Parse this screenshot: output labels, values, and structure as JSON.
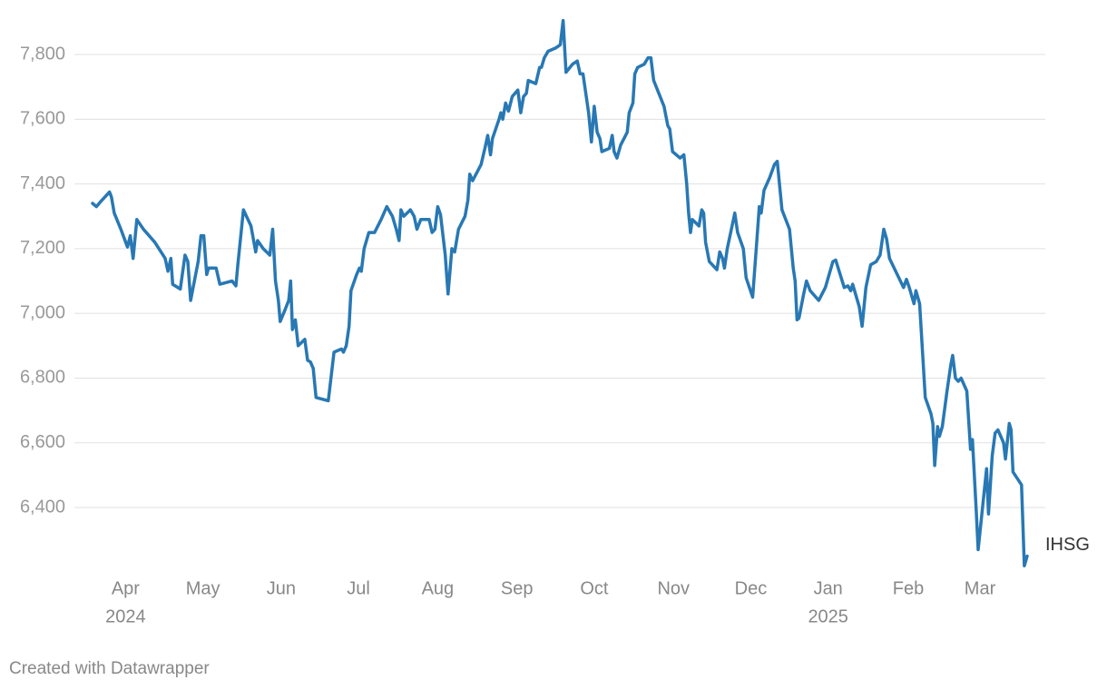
{
  "chart_data": {
    "type": "line",
    "series_label_position": "end",
    "footer": "Created with Datawrapper",
    "grid": true,
    "xlim": [
      2024.215,
      2025.206
    ],
    "ylim": [
      6200,
      7900
    ],
    "yticks": [
      {
        "value": 6400,
        "label": "6,400"
      },
      {
        "value": 6600,
        "label": "6,600"
      },
      {
        "value": 6800,
        "label": "6,800"
      },
      {
        "value": 7000,
        "label": "7,000"
      },
      {
        "value": 7200,
        "label": "7,200"
      },
      {
        "value": 7400,
        "label": "7,400"
      },
      {
        "value": 7600,
        "label": "7,600"
      },
      {
        "value": 7800,
        "label": "7,800"
      }
    ],
    "xticks": [
      {
        "value": 2024.25,
        "label": "Apr"
      },
      {
        "value": 2024.332,
        "label": "May"
      },
      {
        "value": 2024.415,
        "label": "Jun"
      },
      {
        "value": 2024.497,
        "label": "Jul"
      },
      {
        "value": 2024.581,
        "label": "Aug"
      },
      {
        "value": 2024.665,
        "label": "Sep"
      },
      {
        "value": 2024.747,
        "label": "Oct"
      },
      {
        "value": 2024.831,
        "label": "Nov"
      },
      {
        "value": 2024.913,
        "label": "Dec"
      },
      {
        "value": 2024.995,
        "label": "Jan"
      },
      {
        "value": 2025.08,
        "label": "Feb"
      },
      {
        "value": 2025.156,
        "label": "Mar"
      }
    ],
    "year_labels": [
      {
        "value": 2024.25,
        "label": "2024"
      },
      {
        "value": 2024.995,
        "label": "2025"
      }
    ],
    "x": [
      2024.215,
      2024.219,
      2024.225,
      2024.233,
      2024.235,
      2024.238,
      2024.245,
      2024.252,
      2024.255,
      2024.258,
      2024.262,
      2024.269,
      2024.281,
      2024.292,
      2024.295,
      2024.298,
      2024.3,
      2024.308,
      2024.313,
      2024.316,
      2024.319,
      2024.327,
      2024.33,
      2024.333,
      2024.336,
      2024.338,
      2024.346,
      2024.35,
      2024.363,
      2024.367,
      2024.369,
      2024.375,
      2024.383,
      2024.388,
      2024.39,
      2024.396,
      2024.403,
      2024.406,
      2024.409,
      2024.412,
      2024.414,
      2024.419,
      2024.423,
      2024.425,
      2024.427,
      2024.43,
      2024.433,
      2024.44,
      2024.443,
      2024.446,
      2024.449,
      2024.452,
      2024.465,
      2024.469,
      2024.471,
      2024.479,
      2024.481,
      2024.484,
      2024.487,
      2024.489,
      2024.495,
      2024.498,
      2024.5,
      2024.503,
      2024.508,
      2024.514,
      2024.521,
      2024.527,
      2024.533,
      2024.537,
      2024.54,
      2024.542,
      2024.545,
      2024.552,
      2024.556,
      2024.559,
      2024.563,
      2024.572,
      2024.575,
      2024.578,
      2024.581,
      2024.584,
      2024.589,
      2024.592,
      2024.596,
      2024.599,
      2024.603,
      2024.61,
      2024.613,
      2024.615,
      2024.618,
      2024.627,
      2024.631,
      2024.634,
      2024.637,
      2024.639,
      2024.646,
      2024.648,
      2024.65,
      2024.653,
      2024.656,
      2024.66,
      2024.666,
      2024.669,
      2024.672,
      2024.675,
      2024.677,
      2024.685,
      2024.689,
      2024.691,
      2024.694,
      2024.698,
      2024.706,
      2024.711,
      2024.714,
      2024.717,
      2024.724,
      2024.729,
      2024.732,
      2024.735,
      2024.741,
      2024.744,
      2024.747,
      2024.75,
      2024.753,
      2024.755,
      2024.763,
      2024.766,
      2024.768,
      2024.771,
      2024.775,
      2024.782,
      2024.784,
      2024.788,
      2024.79,
      2024.793,
      2024.8,
      2024.804,
      2024.807,
      2024.81,
      2024.821,
      2024.825,
      2024.827,
      2024.83,
      2024.838,
      2024.842,
      2024.845,
      2024.847,
      2024.849,
      2024.851,
      2024.858,
      2024.861,
      2024.863,
      2024.865,
      2024.869,
      2024.877,
      2024.88,
      2024.883,
      2024.885,
      2024.888,
      2024.896,
      2024.899,
      2024.905,
      2024.908,
      2024.915,
      2024.919,
      2024.922,
      2024.924,
      2024.927,
      2024.933,
      2024.938,
      2024.941,
      2024.946,
      2024.954,
      2024.958,
      2024.96,
      2024.962,
      2024.964,
      2024.969,
      2024.972,
      2024.976,
      2024.985,
      2024.992,
      2025.0,
      2025.003,
      2025.012,
      2025.016,
      2025.019,
      2025.021,
      2025.028,
      2025.031,
      2025.035,
      2025.04,
      2025.046,
      2025.05,
      2025.054,
      2025.057,
      2025.06,
      2025.075,
      2025.078,
      2025.081,
      2025.086,
      2025.088,
      2025.092,
      2025.098,
      2025.104,
      2025.106,
      2025.108,
      2025.111,
      2025.113,
      2025.116,
      2025.121,
      2025.125,
      2025.127,
      2025.13,
      2025.133,
      2025.136,
      2025.142,
      2025.146,
      2025.148,
      2025.152,
      2025.154,
      2025.158,
      2025.163,
      2025.165,
      2025.169,
      2025.172,
      2025.175,
      2025.181,
      2025.183,
      2025.187,
      2025.189,
      2025.191,
      2025.2,
      2025.203,
      2025.206
    ],
    "series": [
      {
        "name": "IHSG",
        "color": "#2878b4",
        "values": [
          7340,
          7330,
          7350,
          7375,
          7360,
          7310,
          7260,
          7205,
          7240,
          7170,
          7290,
          7260,
          7220,
          7170,
          7130,
          7170,
          7090,
          7075,
          7180,
          7160,
          7040,
          7160,
          7240,
          7240,
          7120,
          7140,
          7140,
          7090,
          7100,
          7085,
          7150,
          7320,
          7270,
          7190,
          7225,
          7200,
          7180,
          7260,
          7100,
          7040,
          6975,
          7010,
          7040,
          7100,
          6950,
          6980,
          6900,
          6920,
          6855,
          6850,
          6830,
          6740,
          6730,
          6830,
          6880,
          6890,
          6880,
          6900,
          6960,
          7070,
          7120,
          7140,
          7130,
          7200,
          7250,
          7250,
          7290,
          7330,
          7300,
          7260,
          7225,
          7320,
          7300,
          7320,
          7300,
          7260,
          7290,
          7290,
          7250,
          7260,
          7330,
          7305,
          7180,
          7060,
          7200,
          7190,
          7260,
          7300,
          7350,
          7430,
          7410,
          7460,
          7510,
          7550,
          7490,
          7540,
          7600,
          7620,
          7600,
          7650,
          7625,
          7670,
          7690,
          7620,
          7670,
          7680,
          7720,
          7710,
          7760,
          7760,
          7790,
          7810,
          7820,
          7830,
          7905,
          7745,
          7770,
          7780,
          7740,
          7740,
          7620,
          7530,
          7640,
          7560,
          7540,
          7500,
          7510,
          7550,
          7500,
          7480,
          7520,
          7560,
          7620,
          7650,
          7740,
          7760,
          7770,
          7790,
          7790,
          7720,
          7640,
          7580,
          7570,
          7500,
          7480,
          7490,
          7400,
          7310,
          7250,
          7290,
          7270,
          7320,
          7310,
          7220,
          7160,
          7135,
          7190,
          7170,
          7140,
          7200,
          7310,
          7250,
          7200,
          7110,
          7050,
          7210,
          7330,
          7310,
          7380,
          7420,
          7460,
          7470,
          7320,
          7260,
          7140,
          7100,
          6980,
          6985,
          7060,
          7100,
          7070,
          7040,
          7080,
          7160,
          7165,
          7080,
          7085,
          7070,
          7090,
          7020,
          6960,
          7080,
          7150,
          7160,
          7180,
          7260,
          7230,
          7170,
          7080,
          7105,
          7080,
          7030,
          7070,
          7030,
          6740,
          6690,
          6660,
          6530,
          6650,
          6620,
          6650,
          6760,
          6840,
          6870,
          6800,
          6790,
          6800,
          6760,
          6580,
          6610,
          6390,
          6270,
          6380,
          6520,
          6380,
          6560,
          6630,
          6640,
          6600,
          6550,
          6660,
          6640,
          6510,
          6470,
          6220,
          6250
        ]
      }
    ]
  }
}
